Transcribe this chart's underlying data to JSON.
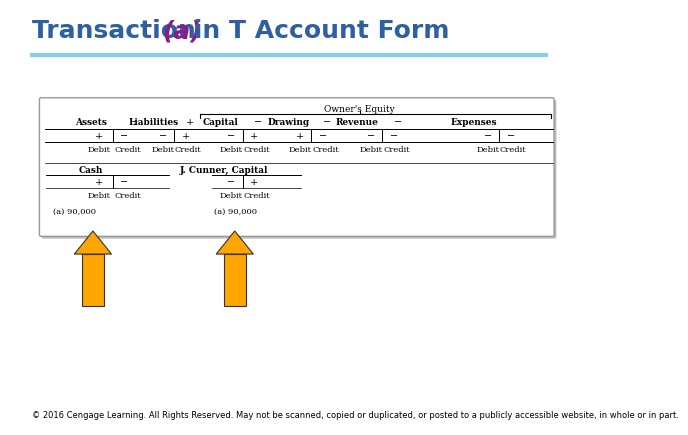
{
  "title_text1": "Transaction ",
  "title_text2": "(a)",
  "title_text3": " in T Account Form",
  "title_color1": "#2E5FA3",
  "title_color2": "#8B1A8B",
  "title_fontsize": 18,
  "underline_color": "#87CEEB",
  "bg_color": "#ffffff",
  "arrow_color": "#FFA500",
  "copyright_text": "© 2016 Cengage Learning. All Rights Reserved. May not be scanned, copied or duplicated, or posted to a publicly accessible website, in whole or in part.",
  "copyright_fontsize": 6
}
